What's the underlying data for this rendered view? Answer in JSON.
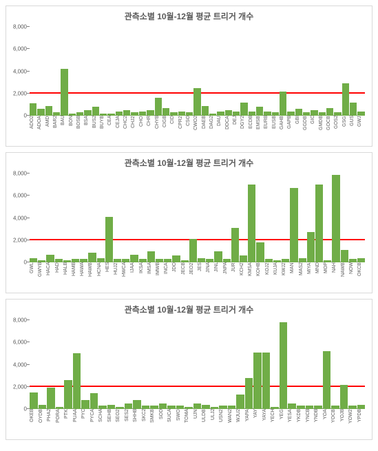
{
  "bar_color": "#70ad47",
  "reference_line_color": "#ff0000",
  "grid_text_color": "#595959",
  "title_color": "#595959",
  "panel_border_color": "#d9d9d9",
  "background_color": "#ffffff",
  "reference_value": 2000,
  "charts": [
    {
      "title": "관측소별 10월-12월 평균 트리거 개수",
      "ylim": [
        0,
        8000
      ],
      "ytick_step": 2000,
      "categories": [
        "ADO2",
        "ADOA",
        "AMD",
        "BAR2",
        "BAU",
        "BON",
        "BOSB",
        "BSA",
        "BUS2",
        "BUYB",
        "CEA",
        "CEJA",
        "CHC2",
        "CHJ2",
        "CHO",
        "CHR",
        "CHYB",
        "CIGB",
        "CID",
        "CPR2",
        "CSO",
        "CWO2",
        "DAEB",
        "DAG2",
        "DAU",
        "DDCA",
        "DEJ",
        "DGY2",
        "ECDB",
        "EMSB",
        "EURB",
        "EUSB",
        "GAHB",
        "GAPB",
        "GBI",
        "GGDB",
        "GIC",
        "GMDB",
        "GOCB",
        "GOS2",
        "GSG",
        "GUS",
        "GWJ"
      ],
      "values": [
        1100,
        600,
        900,
        300,
        4200,
        200,
        300,
        500,
        800,
        200,
        200,
        400,
        500,
        300,
        400,
        500,
        1600,
        700,
        300,
        400,
        300,
        2500,
        900,
        200,
        400,
        500,
        400,
        1200,
        400,
        800,
        400,
        300,
        2200,
        400,
        600,
        300,
        500,
        300,
        700,
        300,
        2900,
        1200,
        400
      ]
    },
    {
      "title": "관측소별 10월-12월 평균 트리거 개수",
      "ylim": [
        0,
        8000
      ],
      "ytick_step": 2000,
      "categories": [
        "GWL",
        "GWYB",
        "HACA",
        "HAD",
        "HALB",
        "HAMB",
        "HAWA",
        "HAWB",
        "HCNA",
        "HES",
        "HUJ2",
        "HWCA",
        "IJAA",
        "IKSA",
        "IMSA",
        "IMWB",
        "INCA",
        "JDO",
        "JECB",
        "JEO2",
        "JES",
        "JINA",
        "JINL",
        "JNPA",
        "JUR",
        "KCH2",
        "KMSA",
        "KOHB",
        "KOJ2",
        "KUJA",
        "KWJ2",
        "MAN",
        "MAS2",
        "MIYA",
        "MND",
        "MOP",
        "NAH",
        "NAWB",
        "NOW",
        "OKCB"
      ],
      "values": [
        400,
        200,
        700,
        300,
        200,
        300,
        300,
        900,
        400,
        4100,
        300,
        300,
        700,
        300,
        1000,
        300,
        300,
        600,
        200,
        2100,
        400,
        300,
        1000,
        300,
        3100,
        600,
        7000,
        1800,
        300,
        200,
        300,
        6700,
        400,
        2700,
        7000,
        200,
        7900,
        1100,
        300,
        400
      ]
    },
    {
      "title": "관측소별 10월-12월 평균 트리거 개수",
      "ylim": [
        0,
        8000
      ],
      "ytick_step": 2000,
      "categories": [
        "OKEB",
        "OYDB",
        "PHA2",
        "PORA",
        "PTK",
        "PUAA",
        "PYC",
        "PYCA",
        "SCHA",
        "SEHB",
        "SEO2",
        "SES2",
        "SHHB",
        "SKC2",
        "SMKB",
        "SOD",
        "SUCA",
        "SWO",
        "TOMA",
        "UJN",
        "ULDB",
        "ULJ2",
        "USN2",
        "WAN2",
        "WJU2",
        "YAPA",
        "YAY",
        "YAYA",
        "YECH",
        "YEG",
        "YESA",
        "YKDB",
        "YNCB",
        "YNDB",
        "YOA",
        "YOCB",
        "YOJB",
        "YOW2",
        "YPDB"
      ],
      "values": [
        1500,
        400,
        1900,
        200,
        2600,
        5000,
        800,
        1400,
        300,
        400,
        200,
        500,
        800,
        300,
        300,
        500,
        300,
        300,
        200,
        500,
        400,
        200,
        300,
        300,
        1300,
        2800,
        5100,
        5100,
        200,
        7800,
        500,
        300,
        300,
        300,
        5200,
        300,
        2200,
        300,
        400
      ]
    }
  ],
  "ytick_labels": [
    "0",
    "2,000",
    "4,000",
    "6,000",
    "8,000"
  ]
}
